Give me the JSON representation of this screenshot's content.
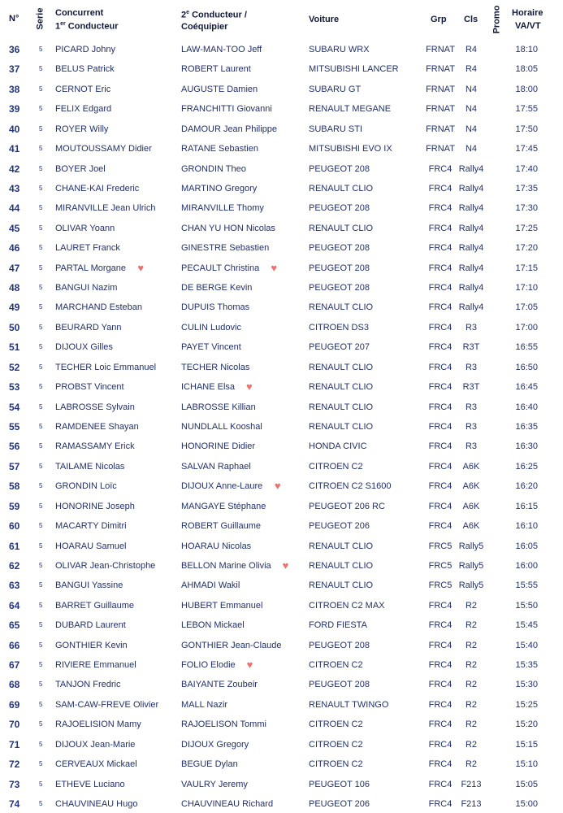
{
  "header": {
    "num": "N°",
    "serie": "Serie",
    "c1a": "Concurrent",
    "c1b_pre": "1",
    "c1b_sup": "er",
    "c1b": " Conducteur",
    "c2a_pre": "2",
    "c2a_sup": "e",
    "c2a": " Conducteur /",
    "c2b": "Coéquipier",
    "car": "Voiture",
    "grp": "Grp",
    "cls": "Cls",
    "promo": "Promo",
    "time1": "Horaire",
    "time2": "VA/VT"
  },
  "colors": {
    "text": "#22306a",
    "heart": "#f07070"
  },
  "rows": [
    {
      "n": "36",
      "s": "5",
      "d1": "PICARD Johny",
      "d2": "LAW-MAN-TOO Jeff",
      "car": "SUBARU WRX",
      "g": "FRNAT",
      "c": "R4",
      "t": "18:10"
    },
    {
      "n": "37",
      "s": "5",
      "d1": "BELUS Patrick",
      "d2": "ROBERT Laurent",
      "car": "MITSUBISHI LANCER",
      "g": "FRNAT",
      "c": "R4",
      "t": "18:05"
    },
    {
      "n": "38",
      "s": "5",
      "d1": "CERNOT Eric",
      "d2": "AUGUSTE Damien",
      "car": "SUBARU GT",
      "g": "FRNAT",
      "c": "N4",
      "t": "18:00"
    },
    {
      "n": "39",
      "s": "5",
      "d1": "FELIX Edgard",
      "d2": "FRANCHITTI Giovanni",
      "car": "RENAULT MEGANE",
      "g": "FRNAT",
      "c": "N4",
      "t": "17:55"
    },
    {
      "n": "40",
      "s": "5",
      "d1": "ROYER Willy",
      "d2": "DAMOUR Jean Philippe",
      "car": "SUBARU STI",
      "g": "FRNAT",
      "c": "N4",
      "t": "17:50"
    },
    {
      "n": "41",
      "s": "5",
      "d1": "MOUTOUSSAMY Didier",
      "d2": "RATANE Sebastien",
      "car": "MITSUBISHI EVO IX",
      "g": "FRNAT",
      "c": "N4",
      "t": "17:45"
    },
    {
      "n": "42",
      "s": "5",
      "d1": "BOYER Joel",
      "d2": "GRONDIN Theo",
      "car": "PEUGEOT 208",
      "g": "FRC4",
      "c": "Rally4",
      "t": "17:40"
    },
    {
      "n": "43",
      "s": "5",
      "d1": "CHANE-KAI Frederic",
      "d2": "MARTINO Gregory",
      "car": "RENAULT CLIO",
      "g": "FRC4",
      "c": "Rally4",
      "t": "17:35"
    },
    {
      "n": "44",
      "s": "5",
      "d1": "MIRANVILLE Jean Ulrich",
      "d2": "MIRANVILLE Thomy",
      "car": "PEUGEOT 208",
      "g": "FRC4",
      "c": "Rally4",
      "t": "17:30"
    },
    {
      "n": "45",
      "s": "5",
      "d1": "OLIVAR Yoann",
      "d2": "CHAN YU HON Nicolas",
      "car": "RENAULT CLIO",
      "g": "FRC4",
      "c": "Rally4",
      "t": "17:25"
    },
    {
      "n": "46",
      "s": "5",
      "d1": "LAURET Franck",
      "d2": "GINESTRE Sebastien",
      "car": "PEUGEOT 208",
      "g": "FRC4",
      "c": "Rally4",
      "t": "17:20"
    },
    {
      "n": "47",
      "s": "5",
      "d1": "PARTAL Morgane",
      "d2": "PECAULT Christina",
      "car": "PEUGEOT 208",
      "g": "FRC4",
      "c": "Rally4",
      "t": "17:15",
      "h1": true,
      "h2": true
    },
    {
      "n": "48",
      "s": "5",
      "d1": "BANGUI Nazim",
      "d2": "DE BERGE Kevin",
      "car": "PEUGEOT 208",
      "g": "FRC4",
      "c": "Rally4",
      "t": "17:10"
    },
    {
      "n": "49",
      "s": "5",
      "d1": "MARCHAND Esteban",
      "d2": "DUPUIS Thomas",
      "car": "RENAULT CLIO",
      "g": "FRC4",
      "c": "Rally4",
      "t": "17:05"
    },
    {
      "n": "50",
      "s": "5",
      "d1": "BEURARD Yann",
      "d2": "CULIN Ludovic",
      "car": "CITROEN DS3",
      "g": "FRC4",
      "c": "R3",
      "t": "17:00"
    },
    {
      "n": "51",
      "s": "5",
      "d1": "DIJOUX Gilles",
      "d2": "PAYET Vincent",
      "car": "PEUGEOT 207",
      "g": "FRC4",
      "c": "R3T",
      "t": "16:55"
    },
    {
      "n": "52",
      "s": "5",
      "d1": "TECHER Loic Emmanuel",
      "d2": "TECHER Nicolas",
      "car": "RENAULT CLIO",
      "g": "FRC4",
      "c": "R3",
      "t": "16:50"
    },
    {
      "n": "53",
      "s": "5",
      "d1": "PROBST Vincent",
      "d2": "ICHANE Elsa",
      "car": "RENAULT CLIO",
      "g": "FRC4",
      "c": "R3T",
      "t": "16:45",
      "h2": true
    },
    {
      "n": "54",
      "s": "5",
      "d1": "LABROSSE Sylvain",
      "d2": "LABROSSE Killian",
      "car": "RENAULT CLIO",
      "g": "FRC4",
      "c": "R3",
      "t": "16:40"
    },
    {
      "n": "55",
      "s": "5",
      "d1": "RAMDENEE Shayan",
      "d2": "NUNDLALL Kooshal",
      "car": "RENAULT CLIO",
      "g": "FRC4",
      "c": "R3",
      "t": "16:35"
    },
    {
      "n": "56",
      "s": "5",
      "d1": "RAMASSAMY Erick",
      "d2": "HONORINE Didier",
      "car": "HONDA CIVIC",
      "g": "FRC4",
      "c": "R3",
      "t": "16:30"
    },
    {
      "n": "57",
      "s": "5",
      "d1": "TAILAME Nicolas",
      "d2": "SALVAN Raphael",
      "car": "CITROEN C2",
      "g": "FRC4",
      "c": "A6K",
      "t": "16:25"
    },
    {
      "n": "58",
      "s": "5",
      "d1": "GRONDIN Loïc",
      "d2": "DIJOUX Anne-Laure",
      "car": "CITROEN C2 S1600",
      "g": "FRC4",
      "c": "A6K",
      "t": "16:20",
      "h2": true
    },
    {
      "n": "59",
      "s": "5",
      "d1": "HONORINE Joseph",
      "d2": "MANGAYE Stéphane",
      "car": "PEUGEOT 206 RC",
      "g": "FRC4",
      "c": "A6K",
      "t": "16:15"
    },
    {
      "n": "60",
      "s": "5",
      "d1": "MACARTY Dimitri",
      "d2": "ROBERT Guillaume",
      "car": "PEUGEOT 206",
      "g": "FRC4",
      "c": "A6K",
      "t": "16:10"
    },
    {
      "n": "61",
      "s": "5",
      "d1": " HOARAU Samuel",
      "d2": "HOARAU Nicolas",
      "car": "RENAULT CLIO",
      "g": "FRC5",
      "c": "Rally5",
      "t": "16:05"
    },
    {
      "n": "62",
      "s": "5",
      "d1": "OLIVAR Jean-Christophe",
      "d2": "BELLON Marine Olivia",
      "car": "RENAULT CLIO",
      "g": "FRC5",
      "c": "Rally5",
      "t": "16:00",
      "h2": true
    },
    {
      "n": "63",
      "s": "5",
      "d1": "BANGUI Yassine",
      "d2": "AHMADI Wakil",
      "car": "RENAULT CLIO",
      "g": "FRC5",
      "c": "Rally5",
      "t": "15:55"
    },
    {
      "n": "64",
      "s": "5",
      "d1": "BARRET Guillaume",
      "d2": "HUBERT Emmanuel",
      "car": "CITROEN C2 MAX",
      "g": "FRC4",
      "c": "R2",
      "t": "15:50"
    },
    {
      "n": "65",
      "s": "5",
      "d1": "DUBARD Laurent",
      "d2": "LEBON Mickael",
      "car": "FORD FIESTA",
      "g": "FRC4",
      "c": "R2",
      "t": "15:45"
    },
    {
      "n": "66",
      "s": "5",
      "d1": "GONTHIER Kevin",
      "d2": "GONTHIER Jean-Claude",
      "car": "PEUGEOT 208",
      "g": "FRC4",
      "c": "R2",
      "t": "15:40"
    },
    {
      "n": "67",
      "s": "5",
      "d1": "RIVIERE Emmanuel",
      "d2": "FOLIO Elodie",
      "car": "CITROEN C2",
      "g": "FRC4",
      "c": "R2",
      "t": "15:35",
      "h2": true
    },
    {
      "n": "68",
      "s": "5",
      "d1": "TANJON Fredric",
      "d2": "BAIYANTE Zoubeir",
      "car": "PEUGEOT 208",
      "g": "FRC4",
      "c": "R2",
      "t": "15:30"
    },
    {
      "n": "69",
      "s": "5",
      "d1": "SAM-CAW-FREVE Olivier",
      "d2": "MALL Nazir",
      "car": "RENAULT TWINGO",
      "g": "FRC4",
      "c": "R2",
      "t": "15:25"
    },
    {
      "n": "70",
      "s": "5",
      "d1": "RAJOELISION Mamy",
      "d2": "RAJOELISON Tommi",
      "car": "CITROEN C2",
      "g": "FRC4",
      "c": "R2",
      "t": "15:20"
    },
    {
      "n": "71",
      "s": "5",
      "d1": "DIJOUX Jean-Marie",
      "d2": "DIJOUX Gregory",
      "car": "CITROEN C2",
      "g": "FRC4",
      "c": "R2",
      "t": "15:15"
    },
    {
      "n": "72",
      "s": "5",
      "d1": "CERVEAUX Mickael",
      "d2": "BEGUE Dylan",
      "car": "CITROEN C2",
      "g": "FRC4",
      "c": "R2",
      "t": "15:10"
    },
    {
      "n": "73",
      "s": "5",
      "d1": "ETHEVE Luciano",
      "d2": "VAULRY Jeremy",
      "car": "PEUGEOT 106",
      "g": "FRC4",
      "c": "F213",
      "t": "15:05"
    },
    {
      "n": "74",
      "s": "5",
      "d1": "CHAUVINEAU Hugo",
      "d2": "CHAUVINEAU Richard",
      "car": "PEUGEOT 206",
      "g": "FRC4",
      "c": "F213",
      "t": "15:00"
    }
  ]
}
